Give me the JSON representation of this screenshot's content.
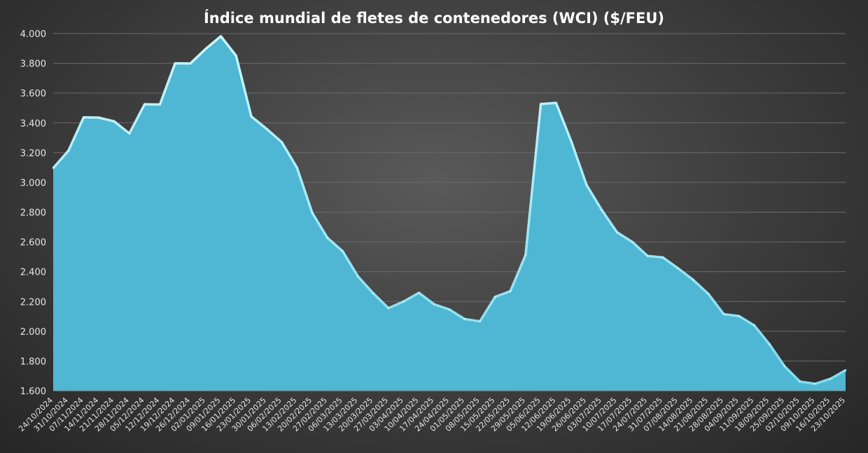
{
  "chart_data": {
    "type": "area",
    "title": "Índice mundial de fletes de contenedores (WCI) ($/FEU)",
    "xlabel": "",
    "ylabel": "",
    "ylim": [
      1600,
      4000
    ],
    "yticks": [
      1600,
      1800,
      2000,
      2200,
      2400,
      2600,
      2800,
      3000,
      3200,
      3400,
      3600,
      3800,
      4000
    ],
    "ytick_labels": [
      "1.600",
      "1.800",
      "2.000",
      "2.200",
      "2.400",
      "2.600",
      "2.800",
      "3.000",
      "3.200",
      "3.400",
      "3.600",
      "3.800",
      "4.000"
    ],
    "grid": true,
    "fill_color": "#4fb6d3",
    "edge_color": "#a8ecf7",
    "x": [
      "24/10/2024",
      "31/10/2024",
      "07/11/2024",
      "14/11/2024",
      "21/11/2024",
      "28/11/2024",
      "05/12/2024",
      "12/12/2024",
      "19/12/2024",
      "26/12/2024",
      "02/01/2025",
      "09/01/2025",
      "16/01/2025",
      "23/01/2025",
      "30/01/2025",
      "06/02/2025",
      "13/02/2025",
      "20/02/2025",
      "27/02/2025",
      "06/03/2025",
      "13/03/2025",
      "20/03/2025",
      "27/03/2025",
      "03/04/2025",
      "10/04/2025",
      "17/04/2025",
      "24/04/2025",
      "01/05/2025",
      "08/05/2025",
      "15/05/2025",
      "22/05/2025",
      "29/05/2025",
      "05/06/2025",
      "12/06/2025",
      "19/06/2025",
      "26/06/2025",
      "03/07/2025",
      "10/07/2025",
      "17/07/2025",
      "24/07/2025",
      "31/07/2025",
      "07/08/2025",
      "14/08/2025",
      "21/08/2025",
      "28/08/2025",
      "04/09/2025",
      "11/09/2025",
      "18/09/2025",
      "25/09/2025",
      "02/10/2025",
      "09/10/2025",
      "16/10/2025",
      "23/10/2025"
    ],
    "series": [
      {
        "values": [
          3096,
          3213,
          3437,
          3435,
          3410,
          3329,
          3525,
          3523,
          3800,
          3799,
          3896,
          3982,
          3851,
          3443,
          3360,
          3270,
          3098,
          2795,
          2627,
          2537,
          2368,
          2255,
          2155,
          2200,
          2258,
          2181,
          2146,
          2082,
          2066,
          2231,
          2269,
          2512,
          3527,
          3534,
          3275,
          2983,
          2814,
          2665,
          2600,
          2506,
          2496,
          2423,
          2345,
          2250,
          2115,
          2102,
          2040,
          1913,
          1764,
          1662,
          1647,
          1680,
          1738
        ]
      }
    ]
  }
}
